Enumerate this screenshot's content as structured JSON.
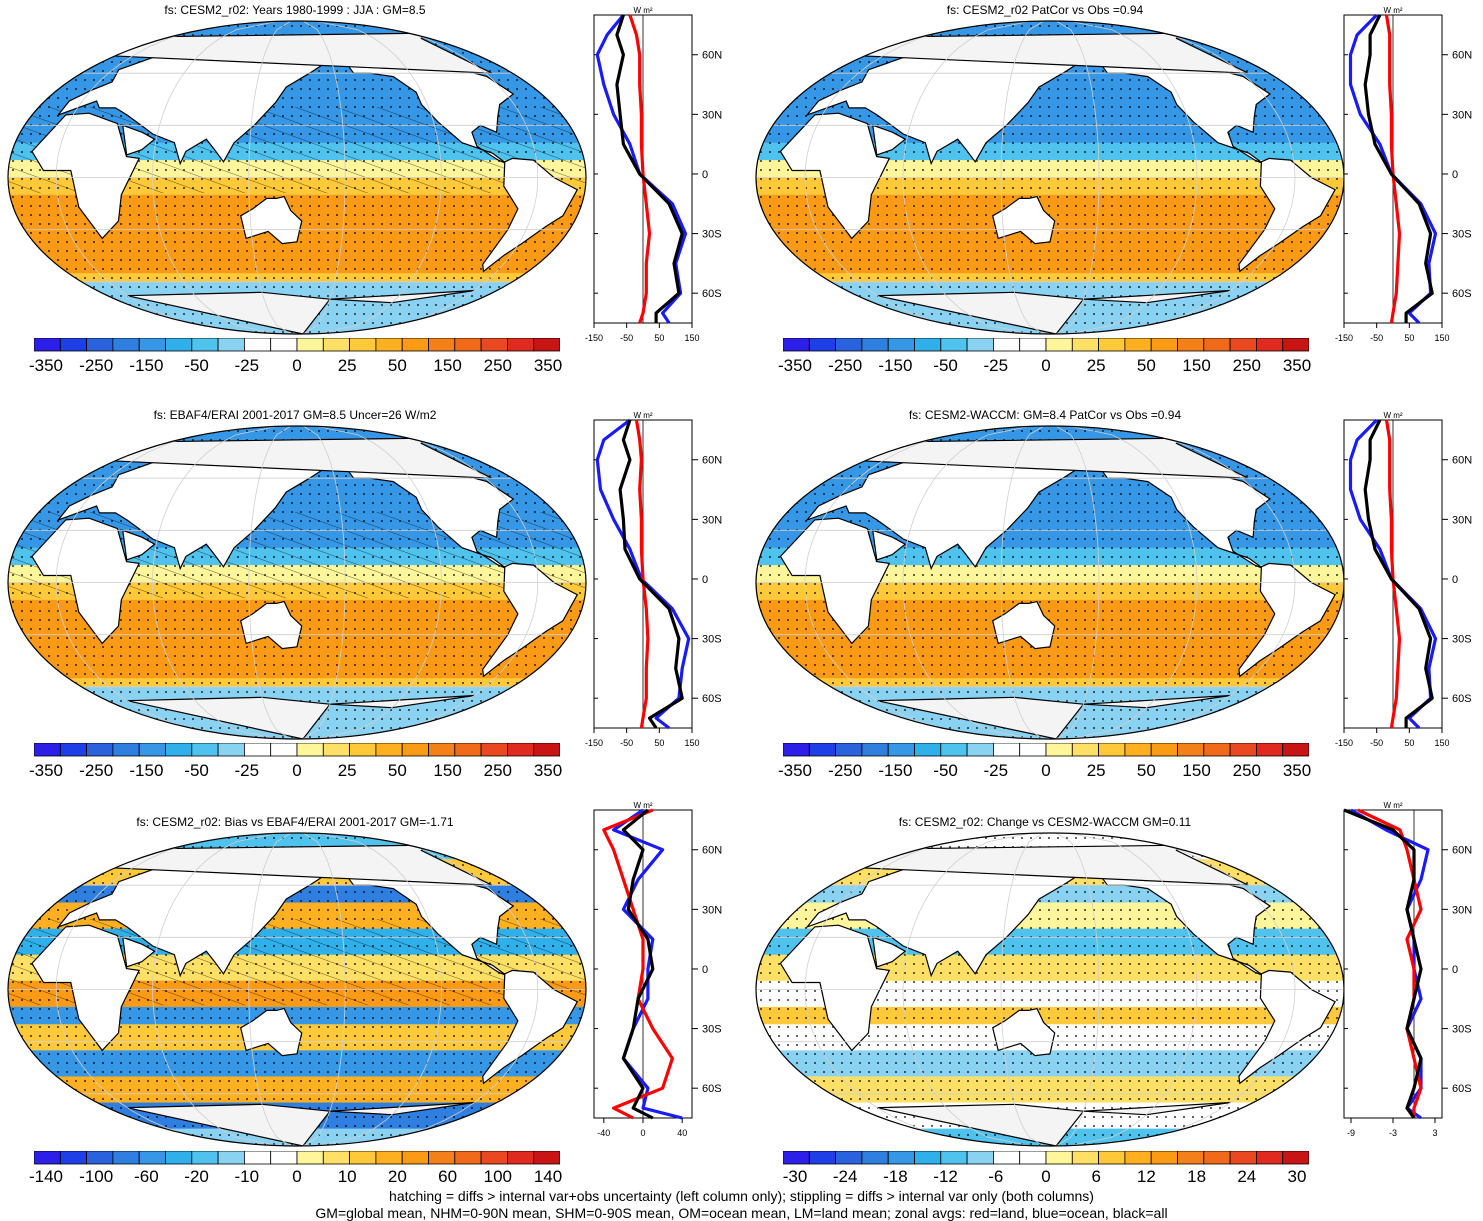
{
  "footer": {
    "line1": "hatching = diffs > internal var+obs uncertainty (left column only); stippling = diffs > internal var only (both columns)",
    "line2": "GM=global mean, NHM=0-90N mean, SHM=0-90S mean, OM=ocean mean, LM=land mean; zonal avgs: red=land, blue=ocean, black=all"
  },
  "colors": {
    "land_zonal": "#ff0000",
    "ocean_zonal": "#1a1aff",
    "all_zonal": "#000000",
    "palette": [
      "#2b1fe8",
      "#1e3ee8",
      "#2a62de",
      "#2f7fe0",
      "#3597e6",
      "#2fb0ea",
      "#4fc2ee",
      "#8ad2f2",
      "#ffffff",
      "#ffffff",
      "#fff59a",
      "#ffe066",
      "#ffc93a",
      "#ffb020",
      "#fb9a15",
      "#f4801a",
      "#f06a1a",
      "#ea4820",
      "#e02a20",
      "#c81414"
    ]
  },
  "zonal_unit": "W m²",
  "lat_ticks": [
    "60N",
    "30N",
    "0",
    "30S",
    "60S"
  ],
  "panels": [
    {
      "title": "fs: CESM2_r02: Years 1980-1999 : JJA : GM=8.5",
      "colorbar_labels": [
        "-350",
        "-250",
        "-150",
        "-50",
        "-25",
        "0",
        "25",
        "50",
        "150",
        "250",
        "350"
      ],
      "zonal_xticks": [
        "-150",
        "-50",
        "50",
        "150"
      ],
      "hatching": true,
      "chart_data": {
        "type": "heatmap+line",
        "field": "fs",
        "title": "fs: CESM2_r02: Years 1980-1999 : JJA : GM=8.5",
        "global_mean": 8.5,
        "colorbar_levels": [
          -350,
          -300,
          -250,
          -200,
          -150,
          -100,
          -50,
          -35,
          -25,
          -15,
          0,
          15,
          25,
          35,
          50,
          100,
          150,
          200,
          250,
          300,
          350
        ],
        "zonal_xlim": [
          -150,
          150
        ],
        "zonal_lat": [
          80,
          70,
          60,
          45,
          30,
          15,
          0,
          -15,
          -30,
          -45,
          -60,
          -70,
          -75
        ],
        "zonal_all": [
          -60,
          -80,
          -60,
          -80,
          -70,
          -60,
          -10,
          80,
          120,
          95,
          110,
          40,
          40
        ],
        "zonal_ocean": [
          -60,
          -110,
          -140,
          -120,
          -90,
          -40,
          -10,
          90,
          130,
          100,
          115,
          60,
          80
        ],
        "zonal_land": [
          -40,
          -20,
          -10,
          -10,
          -5,
          -5,
          0,
          10,
          20,
          10,
          10,
          0,
          -10
        ]
      }
    },
    {
      "title": "fs: CESM2_r02 PatCor vs Obs =0.94",
      "colorbar_labels": [
        "-350",
        "-250",
        "-150",
        "-50",
        "-25",
        "0",
        "25",
        "50",
        "150",
        "250",
        "350"
      ],
      "zonal_xticks": [
        "-150",
        "-50",
        "50",
        "150"
      ],
      "hatching": false,
      "chart_data": {
        "type": "heatmap+line",
        "field": "fs",
        "title": "fs: CESM2_r02 PatCor vs Obs =0.94",
        "pattern_correlation": 0.94,
        "colorbar_levels": [
          -350,
          -300,
          -250,
          -200,
          -150,
          -100,
          -50,
          -35,
          -25,
          -15,
          0,
          15,
          25,
          35,
          50,
          100,
          150,
          200,
          250,
          300,
          350
        ],
        "zonal_xlim": [
          -150,
          150
        ],
        "zonal_lat": [
          80,
          70,
          60,
          45,
          30,
          15,
          0,
          -15,
          -30,
          -45,
          -60,
          -70,
          -75
        ],
        "zonal_all": [
          -40,
          -70,
          -70,
          -85,
          -75,
          -55,
          -5,
          80,
          115,
          100,
          120,
          40,
          40
        ],
        "zonal_ocean": [
          -50,
          -110,
          -130,
          -130,
          -100,
          -40,
          -5,
          85,
          130,
          110,
          115,
          50,
          80
        ],
        "zonal_land": [
          -20,
          -10,
          -10,
          -10,
          -5,
          -5,
          0,
          10,
          20,
          15,
          10,
          0,
          -5
        ]
      }
    },
    {
      "title": "fs: EBAF4/ERAI 2001-2017 GM=8.5 Uncer=26 W/m2",
      "colorbar_labels": [
        "-350",
        "-250",
        "-150",
        "-50",
        "-25",
        "0",
        "25",
        "50",
        "150",
        "250",
        "350"
      ],
      "zonal_xticks": [
        "-150",
        "-50",
        "50",
        "150"
      ],
      "hatching": true,
      "chart_data": {
        "type": "heatmap+line",
        "field": "fs",
        "title": "fs: EBAF4/ERAI 2001-2017 GM=8.5 Uncer=26 W/m2",
        "global_mean": 8.5,
        "uncertainty": 26,
        "colorbar_levels": [
          -350,
          -300,
          -250,
          -200,
          -150,
          -100,
          -50,
          -35,
          -25,
          -15,
          0,
          15,
          25,
          35,
          50,
          100,
          150,
          200,
          250,
          300,
          350
        ],
        "zonal_xlim": [
          -150,
          150
        ],
        "zonal_lat": [
          80,
          70,
          60,
          45,
          30,
          15,
          0,
          -15,
          -30,
          -45,
          -60,
          -70,
          -75
        ],
        "zonal_all": [
          -40,
          -60,
          -40,
          -70,
          -60,
          -55,
          -10,
          80,
          110,
          100,
          120,
          20,
          40
        ],
        "zonal_ocean": [
          -40,
          -120,
          -140,
          -130,
          -90,
          -40,
          -5,
          90,
          140,
          120,
          110,
          40,
          80
        ],
        "zonal_land": [
          -20,
          -10,
          -5,
          -10,
          -5,
          -5,
          0,
          10,
          15,
          10,
          10,
          0,
          -5
        ]
      }
    },
    {
      "title": "fs: CESM2-WACCM: GM=8.4 PatCor vs Obs =0.94",
      "colorbar_labels": [
        "-350",
        "-250",
        "-150",
        "-50",
        "-25",
        "0",
        "25",
        "50",
        "150",
        "250",
        "350"
      ],
      "zonal_xticks": [
        "-150",
        "-50",
        "50",
        "150"
      ],
      "hatching": false,
      "chart_data": {
        "type": "heatmap+line",
        "field": "fs",
        "title": "fs: CESM2-WACCM: GM=8.4 PatCor vs Obs =0.94",
        "global_mean": 8.4,
        "pattern_correlation": 0.94,
        "colorbar_levels": [
          -350,
          -300,
          -250,
          -200,
          -150,
          -100,
          -50,
          -35,
          -25,
          -15,
          0,
          15,
          25,
          35,
          50,
          100,
          150,
          200,
          250,
          300,
          350
        ],
        "zonal_xlim": [
          -150,
          150
        ],
        "zonal_lat": [
          80,
          70,
          60,
          45,
          30,
          15,
          0,
          -15,
          -30,
          -45,
          -60,
          -70,
          -75
        ],
        "zonal_all": [
          -40,
          -70,
          -70,
          -85,
          -75,
          -55,
          -5,
          80,
          115,
          100,
          120,
          40,
          40
        ],
        "zonal_ocean": [
          -50,
          -110,
          -130,
          -130,
          -100,
          -40,
          -5,
          85,
          130,
          110,
          115,
          50,
          80
        ],
        "zonal_land": [
          -20,
          -10,
          -10,
          -10,
          -5,
          -5,
          0,
          10,
          20,
          15,
          10,
          0,
          -5
        ]
      }
    },
    {
      "title": "fs: CESM2_r02: Bias vs EBAF4/ERAI 2001-2017 GM=-1.71",
      "colorbar_labels": [
        "-140",
        "-100",
        "-60",
        "-20",
        "-10",
        "0",
        "10",
        "20",
        "60",
        "100",
        "140"
      ],
      "zonal_xticks": [
        "-40",
        "0",
        "40"
      ],
      "hatching": true,
      "chart_data": {
        "type": "heatmap+line",
        "field": "fs",
        "title": "fs: CESM2_r02: Bias vs EBAF4/ERAI 2001-2017 GM=-1.71",
        "global_mean": -1.71,
        "colorbar_levels": [
          -140,
          -120,
          -100,
          -80,
          -60,
          -40,
          -20,
          -15,
          -10,
          -5,
          0,
          5,
          10,
          15,
          20,
          40,
          60,
          80,
          100,
          120,
          140
        ],
        "zonal_xlim": [
          -50,
          50
        ],
        "zonal_lat": [
          80,
          70,
          60,
          45,
          30,
          15,
          0,
          -15,
          -30,
          -45,
          -60,
          -70,
          -75
        ],
        "zonal_all": [
          5,
          -20,
          0,
          -10,
          -15,
          5,
          10,
          -5,
          -10,
          -20,
          0,
          -10,
          10
        ],
        "zonal_ocean": [
          0,
          -30,
          20,
          -5,
          -20,
          10,
          5,
          5,
          -10,
          -20,
          5,
          0,
          40
        ],
        "zonal_land": [
          10,
          -40,
          -30,
          -20,
          -10,
          0,
          0,
          -5,
          10,
          30,
          20,
          -30,
          -10
        ]
      }
    },
    {
      "title": "fs: CESM2_r02: Change vs CESM2-WACCM GM=0.11",
      "colorbar_labels": [
        "-30",
        "-24",
        "-18",
        "-12",
        "-6",
        "0",
        "6",
        "12",
        "18",
        "24",
        "30"
      ],
      "zonal_xticks": [
        "-9",
        "-3",
        "3"
      ],
      "hatching": false,
      "chart_data": {
        "type": "heatmap+line",
        "field": "fs",
        "title": "fs: CESM2_r02: Change vs CESM2-WACCM GM=0.11",
        "global_mean": 0.11,
        "colorbar_levels": [
          -30,
          -27,
          -24,
          -21,
          -18,
          -15,
          -12,
          -9,
          -6,
          -3,
          0,
          3,
          6,
          9,
          12,
          15,
          18,
          21,
          24,
          27,
          30
        ],
        "zonal_xlim": [
          -10,
          4
        ],
        "zonal_lat": [
          80,
          70,
          60,
          45,
          30,
          15,
          0,
          -15,
          -30,
          -45,
          -60,
          -70,
          -75
        ],
        "zonal_all": [
          -10,
          -3,
          0,
          0,
          -1,
          0,
          1,
          0,
          -1,
          1,
          0,
          -1,
          0
        ],
        "zonal_ocean": [
          -9,
          -4,
          2,
          1,
          -1,
          0,
          0,
          1,
          -1,
          1,
          1,
          -1,
          1
        ],
        "zonal_land": [
          -8,
          -2,
          -1,
          0,
          1,
          -1,
          0,
          0,
          -1,
          0,
          1,
          0,
          0
        ]
      }
    }
  ]
}
